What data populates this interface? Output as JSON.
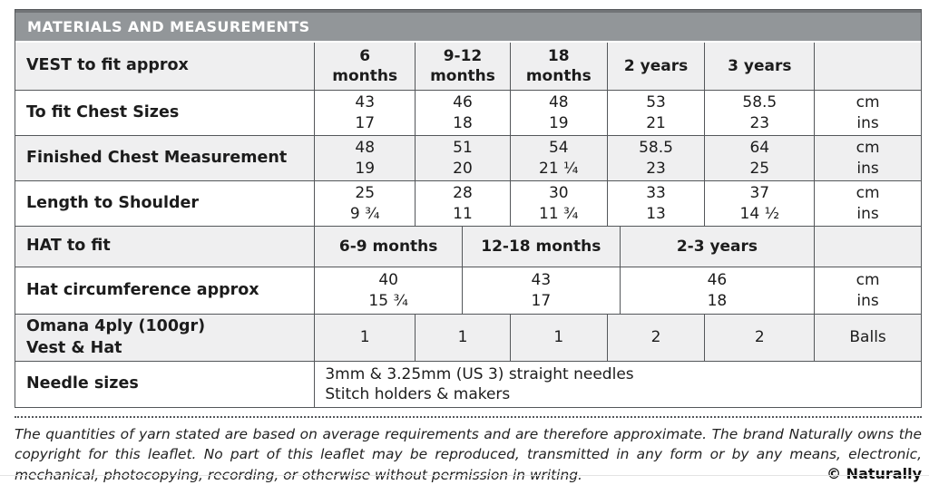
{
  "colors": {
    "title_bar_bg": "#929699",
    "title_bar_top_edge": "#717477",
    "shaded_row_bg": "#efeff0",
    "cell_border": "#54575a",
    "title_text": "#ffffff",
    "body_text": "#1c1c1c"
  },
  "table": {
    "title": "MATERIALS AND MEASUREMENTS",
    "vest": {
      "label": "VEST to fit approx",
      "columns": [
        [
          "6",
          "months"
        ],
        [
          "9-12",
          "months"
        ],
        [
          "18",
          "months"
        ],
        [
          "2 years"
        ],
        [
          "3 years"
        ]
      ]
    },
    "rows": [
      {
        "label": "To fit Chest Sizes",
        "values": [
          [
            "43",
            "17"
          ],
          [
            "46",
            "18"
          ],
          [
            "48",
            "19"
          ],
          [
            "53",
            "21"
          ],
          [
            "58.5",
            "23"
          ]
        ],
        "units": [
          "cm",
          "ins"
        ]
      },
      {
        "label": "Finished Chest Measurement",
        "values": [
          [
            "48",
            "19"
          ],
          [
            "51",
            "20"
          ],
          [
            "54",
            "21 ¼"
          ],
          [
            "58.5",
            "23"
          ],
          [
            "64",
            "25"
          ]
        ],
        "units": [
          "cm",
          "ins"
        ]
      },
      {
        "label": "Length to Shoulder",
        "values": [
          [
            "25",
            "9 ¾"
          ],
          [
            "28",
            "11"
          ],
          [
            "30",
            "11 ¾"
          ],
          [
            "33",
            "13"
          ],
          [
            "37",
            "14 ½"
          ]
        ],
        "units": [
          "cm",
          "ins"
        ]
      }
    ],
    "hat": {
      "label": "HAT to fit",
      "columns": [
        "6-9 months",
        "12-18 months",
        "2-3 years"
      ],
      "row": {
        "label": "Hat circumference approx",
        "values": [
          [
            "40",
            "15 ¾"
          ],
          [
            "43",
            "17"
          ],
          [
            "46",
            "18"
          ]
        ],
        "units": [
          "cm",
          "ins"
        ]
      }
    },
    "yarn": {
      "label_line1": "Omana 4ply (100gr)",
      "label_line2": "Vest & Hat",
      "values": [
        "1",
        "1",
        "1",
        "2",
        "2"
      ],
      "units": "Balls"
    },
    "needles": {
      "label": "Needle sizes",
      "line1": "3mm & 3.25mm (US 3) straight needles",
      "line2": "Stitch holders & makers"
    }
  },
  "footer": {
    "text": "The quantities of yarn stated are based on average requirements and are therefore approximate. The brand Naturally owns the copyright for this leaflet. No part of this leaflet may be reproduced, transmitted in any form or by any means, electronic, mechanical, photocopying, recording, or otherwise without permission in writing.",
    "copyright": "© Naturally"
  }
}
